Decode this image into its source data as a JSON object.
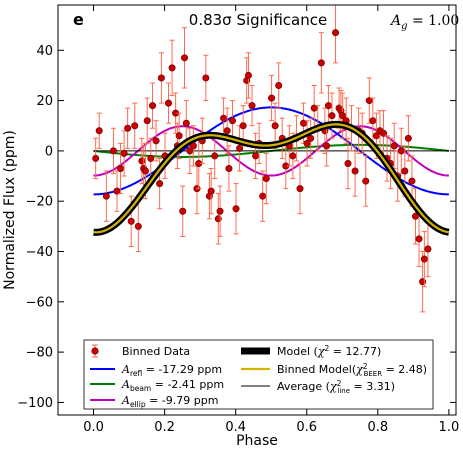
{
  "chart_data": {
    "type": "scatter",
    "panel_letter": "e",
    "title": "0.83σ Significance",
    "annotation": "Ag = 1.00",
    "xlabel": "Phase",
    "ylabel": "Normalized Flux (ppm)",
    "xlim": [
      -0.1,
      1.02
    ],
    "ylim": [
      -105,
      58
    ],
    "xticks": [
      0.0,
      0.2,
      0.4,
      0.6,
      0.8,
      1.0
    ],
    "xtick_labels": [
      "0.0",
      "0.2",
      "0.4",
      "0.6",
      "0.8",
      "1.0"
    ],
    "yticks": [
      -100,
      -80,
      -60,
      -40,
      -20,
      0,
      20,
      40
    ],
    "ytick_labels": [
      "−100",
      "−80",
      "−60",
      "−40",
      "−20",
      "0",
      "20",
      "40"
    ],
    "grid": false,
    "legend_position": "lower center",
    "colors": {
      "data": "#cc0000",
      "errorbar": "#ff6a4d",
      "model": "#000000",
      "binned_model": "#d4b300",
      "refl": "#0000ff",
      "beam": "#008000",
      "ellip": "#bf00bf",
      "average": "#000000"
    },
    "model": {
      "offset": -5.25,
      "A_refl": -17.29,
      "A_beam": -2.41,
      "A_ellip": -9.79
    },
    "series": [
      {
        "name": "Binned Data",
        "kind": "errorbar"
      },
      {
        "name": "A_refl = -17.29 ppm",
        "kind": "line"
      },
      {
        "name": "A_beam = -2.41 ppm",
        "kind": "line"
      },
      {
        "name": "A_ellip = -9.79 ppm",
        "kind": "line"
      },
      {
        "name": "Model (χ² = 12.77)",
        "kind": "line"
      },
      {
        "name": "Binned Model(χ²BEER = 2.48)",
        "kind": "line"
      },
      {
        "name": "Average (χ²line = 3.31)",
        "kind": "line"
      }
    ],
    "points": [
      {
        "x": 0.006,
        "y": -3,
        "err": 8
      },
      {
        "x": 0.016,
        "y": 8,
        "err": 7
      },
      {
        "x": 0.036,
        "y": -18,
        "err": 10
      },
      {
        "x": 0.056,
        "y": 0,
        "err": 9
      },
      {
        "x": 0.066,
        "y": -16,
        "err": 8
      },
      {
        "x": 0.076,
        "y": -7,
        "err": 10
      },
      {
        "x": 0.086,
        "y": -1,
        "err": 9
      },
      {
        "x": 0.096,
        "y": 9,
        "err": 8
      },
      {
        "x": 0.106,
        "y": -28,
        "err": 10
      },
      {
        "x": 0.116,
        "y": 10,
        "err": 9
      },
      {
        "x": 0.126,
        "y": -30,
        "err": 10
      },
      {
        "x": 0.136,
        "y": -4,
        "err": 9
      },
      {
        "x": 0.141,
        "y": -7,
        "err": 9
      },
      {
        "x": 0.146,
        "y": -8,
        "err": 11
      },
      {
        "x": 0.151,
        "y": 12,
        "err": 9
      },
      {
        "x": 0.161,
        "y": -3,
        "err": 8
      },
      {
        "x": 0.166,
        "y": 18,
        "err": 9
      },
      {
        "x": 0.176,
        "y": 4,
        "err": 8
      },
      {
        "x": 0.186,
        "y": -13,
        "err": 10
      },
      {
        "x": 0.191,
        "y": 29,
        "err": 10
      },
      {
        "x": 0.201,
        "y": -2,
        "err": 9
      },
      {
        "x": 0.211,
        "y": 19,
        "err": 8
      },
      {
        "x": 0.221,
        "y": 33,
        "err": 11
      },
      {
        "x": 0.231,
        "y": 15,
        "err": 8
      },
      {
        "x": 0.236,
        "y": 2,
        "err": 9
      },
      {
        "x": 0.241,
        "y": 6,
        "err": 9
      },
      {
        "x": 0.251,
        "y": -24,
        "err": 10
      },
      {
        "x": 0.256,
        "y": 37,
        "err": 12
      },
      {
        "x": 0.261,
        "y": 11,
        "err": 9
      },
      {
        "x": 0.271,
        "y": 0,
        "err": 9
      },
      {
        "x": 0.281,
        "y": 2,
        "err": 8
      },
      {
        "x": 0.291,
        "y": -15,
        "err": 10
      },
      {
        "x": 0.296,
        "y": -5,
        "err": 10
      },
      {
        "x": 0.306,
        "y": 4,
        "err": 9
      },
      {
        "x": 0.316,
        "y": 29,
        "err": 9
      },
      {
        "x": 0.326,
        "y": -18,
        "err": 9
      },
      {
        "x": 0.331,
        "y": -16,
        "err": 9
      },
      {
        "x": 0.341,
        "y": -2,
        "err": 9
      },
      {
        "x": 0.351,
        "y": -27,
        "err": 10
      },
      {
        "x": 0.356,
        "y": -24,
        "err": 10
      },
      {
        "x": 0.366,
        "y": 13,
        "err": 8
      },
      {
        "x": 0.376,
        "y": 8,
        "err": 9
      },
      {
        "x": 0.381,
        "y": -7,
        "err": 9
      },
      {
        "x": 0.391,
        "y": 12,
        "err": 8
      },
      {
        "x": 0.401,
        "y": -23,
        "err": 10
      },
      {
        "x": 0.411,
        "y": 1,
        "err": 9
      },
      {
        "x": 0.421,
        "y": 10,
        "err": 8
      },
      {
        "x": 0.431,
        "y": 28,
        "err": 9
      },
      {
        "x": 0.436,
        "y": 30,
        "err": 9
      },
      {
        "x": 0.446,
        "y": 18,
        "err": 8
      },
      {
        "x": 0.456,
        "y": -2,
        "err": 9
      },
      {
        "x": 0.466,
        "y": 3,
        "err": 8
      },
      {
        "x": 0.476,
        "y": -18,
        "err": 10
      },
      {
        "x": 0.486,
        "y": -11,
        "err": 10
      },
      {
        "x": 0.501,
        "y": 21,
        "err": 9
      },
      {
        "x": 0.511,
        "y": 10,
        "err": 9
      },
      {
        "x": 0.521,
        "y": 26,
        "err": 9
      },
      {
        "x": 0.531,
        "y": 5,
        "err": 8
      },
      {
        "x": 0.541,
        "y": -6,
        "err": 9
      },
      {
        "x": 0.551,
        "y": 2,
        "err": 8
      },
      {
        "x": 0.561,
        "y": -2,
        "err": 9
      },
      {
        "x": 0.571,
        "y": 5,
        "err": 9
      },
      {
        "x": 0.581,
        "y": -15,
        "err": 10
      },
      {
        "x": 0.591,
        "y": 11,
        "err": 8
      },
      {
        "x": 0.601,
        "y": 3,
        "err": 9
      },
      {
        "x": 0.611,
        "y": 5,
        "err": 8
      },
      {
        "x": 0.621,
        "y": 17,
        "err": 9
      },
      {
        "x": 0.631,
        "y": 9,
        "err": 9
      },
      {
        "x": 0.641,
        "y": 35,
        "err": 12
      },
      {
        "x": 0.651,
        "y": 8,
        "err": 9
      },
      {
        "x": 0.656,
        "y": 2,
        "err": 8
      },
      {
        "x": 0.661,
        "y": 18,
        "err": 8
      },
      {
        "x": 0.671,
        "y": 14,
        "err": 9
      },
      {
        "x": 0.681,
        "y": 47,
        "err": 12
      },
      {
        "x": 0.691,
        "y": 17,
        "err": 8
      },
      {
        "x": 0.696,
        "y": 16,
        "err": 8
      },
      {
        "x": 0.701,
        "y": 14,
        "err": 9
      },
      {
        "x": 0.711,
        "y": 12,
        "err": 9
      },
      {
        "x": 0.716,
        "y": -5,
        "err": 10
      },
      {
        "x": 0.726,
        "y": 9,
        "err": 9
      },
      {
        "x": 0.736,
        "y": -8,
        "err": 10
      },
      {
        "x": 0.746,
        "y": 8,
        "err": 9
      },
      {
        "x": 0.756,
        "y": 7,
        "err": 8
      },
      {
        "x": 0.766,
        "y": -12,
        "err": 10
      },
      {
        "x": 0.776,
        "y": 20,
        "err": 9
      },
      {
        "x": 0.786,
        "y": 12,
        "err": 9
      },
      {
        "x": 0.796,
        "y": 6,
        "err": 9
      },
      {
        "x": 0.806,
        "y": 8,
        "err": 8
      },
      {
        "x": 0.816,
        "y": 7,
        "err": 9
      },
      {
        "x": 0.826,
        "y": -3,
        "err": 9
      },
      {
        "x": 0.836,
        "y": -5,
        "err": 10
      },
      {
        "x": 0.846,
        "y": 2,
        "err": 9
      },
      {
        "x": 0.856,
        "y": -10,
        "err": 10
      },
      {
        "x": 0.866,
        "y": 0,
        "err": 9
      },
      {
        "x": 0.876,
        "y": -8,
        "err": 10
      },
      {
        "x": 0.886,
        "y": 5,
        "err": 9
      },
      {
        "x": 0.896,
        "y": -12,
        "err": 10
      },
      {
        "x": 0.906,
        "y": -26,
        "err": 11
      },
      {
        "x": 0.916,
        "y": -35,
        "err": 11
      },
      {
        "x": 0.926,
        "y": -52,
        "err": 12
      },
      {
        "x": 0.931,
        "y": -43,
        "err": 11
      },
      {
        "x": 0.941,
        "y": -39,
        "err": 11
      }
    ]
  }
}
